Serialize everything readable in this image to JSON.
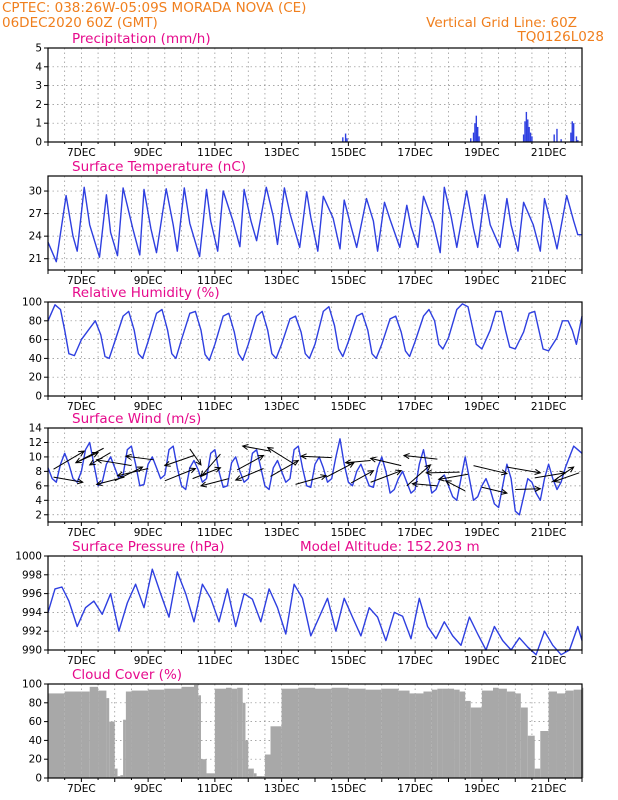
{
  "header": {
    "line1_left": "CPTEC:   038:26W-05:09S   MORADA NOVA (CE)",
    "line2_left": "06DEC2020 60Z (GMT)",
    "line1_right": "Vertical Grid Line: 60Z",
    "line2_right": "TQ0126L028"
  },
  "colors": {
    "header": "#f07f1e",
    "title": "#e60a8c",
    "series": "#2e3fe0",
    "cloud": "#a8a8a8"
  },
  "chart_data": [
    {
      "type": "bar",
      "title": "Precipitation (mm/h)",
      "xtick_labels": [
        "7DEC",
        "9DEC",
        "11DEC",
        "13DEC",
        "15DEC",
        "17DEC",
        "19DEC",
        "21DEC"
      ],
      "ylim": [
        0,
        5
      ],
      "yticks": [
        0,
        1,
        2,
        3,
        4,
        5
      ],
      "grid": true,
      "x_unit": "hours since 06DEC2020 12Z",
      "bars": [
        [
          212,
          0.25
        ],
        [
          214,
          0.45
        ],
        [
          215,
          0.2
        ],
        [
          304,
          0.2
        ],
        [
          306,
          0.5
        ],
        [
          307,
          1.0
        ],
        [
          308,
          1.4
        ],
        [
          309,
          0.8
        ],
        [
          310,
          0.3
        ],
        [
          342,
          0.4
        ],
        [
          343,
          1.1
        ],
        [
          344,
          1.6
        ],
        [
          345,
          1.2
        ],
        [
          346,
          0.8
        ],
        [
          347,
          0.5
        ],
        [
          348,
          0.3
        ],
        [
          364,
          0.4
        ],
        [
          366,
          0.7
        ],
        [
          369,
          0.15
        ],
        [
          376,
          0.5
        ],
        [
          377,
          1.1
        ],
        [
          378,
          1.0
        ],
        [
          380,
          0.3
        ],
        [
          381,
          0.1
        ]
      ]
    },
    {
      "type": "line",
      "title": "Surface Temperature (nC)",
      "xtick_labels": [
        "7DEC",
        "9DEC",
        "11DEC",
        "13DEC",
        "15DEC",
        "17DEC",
        "19DEC",
        "21DEC"
      ],
      "ylim": [
        19.5,
        32
      ],
      "yticks": [
        21,
        24,
        27,
        30
      ],
      "grid": true,
      "x_unit": "hours since 06DEC2020 12Z",
      "x": [
        0,
        6,
        13,
        18,
        21,
        26,
        30,
        37,
        42,
        45,
        50,
        54,
        61,
        66,
        69,
        74,
        78,
        85,
        90,
        93,
        98,
        102,
        109,
        114,
        117,
        122,
        126,
        133,
        138,
        141,
        146,
        150,
        157,
        162,
        165,
        170,
        174,
        181,
        186,
        189,
        194,
        198,
        205,
        210,
        213,
        218,
        222,
        229,
        234,
        237,
        242,
        246,
        253,
        258,
        261,
        266,
        270,
        277,
        282,
        285,
        290,
        294,
        301,
        306,
        309,
        314,
        318,
        325,
        330,
        333,
        338,
        342,
        349,
        354,
        357,
        362,
        366,
        373,
        378,
        381,
        384
      ],
      "values": [
        23.2,
        20.6,
        29.4,
        24,
        22,
        30.5,
        25.5,
        21.2,
        29.5,
        24.5,
        21.4,
        30.4,
        25,
        21.5,
        30.2,
        25,
        21.8,
        30.3,
        25.5,
        22,
        30.4,
        25.7,
        21.3,
        30.2,
        26,
        22,
        30,
        26,
        22.6,
        30.2,
        26,
        23.4,
        30.5,
        26.6,
        22.9,
        30.4,
        27,
        22.5,
        29.9,
        26.5,
        22,
        29.3,
        26.4,
        22.3,
        28.8,
        25.2,
        22.5,
        29,
        26,
        22,
        28.5,
        26.2,
        22.5,
        28.1,
        25.3,
        22.5,
        29.3,
        25.8,
        21.8,
        30.5,
        26.5,
        22.5,
        30,
        25,
        22.5,
        29.5,
        25.5,
        22.5,
        29,
        25.5,
        22,
        28.5,
        25.5,
        22,
        29,
        25.5,
        22.3,
        29.4,
        26,
        24.2,
        24.2
      ]
    },
    {
      "type": "line",
      "title": "Relative Humidity (%)",
      "xtick_labels": [
        "7DEC",
        "9DEC",
        "11DEC",
        "13DEC",
        "15DEC",
        "17DEC",
        "19DEC",
        "21DEC"
      ],
      "ylim": [
        0,
        100
      ],
      "yticks": [
        0,
        20,
        40,
        60,
        80,
        100
      ],
      "grid": true,
      "x_unit": "hours since 06DEC2020 12Z",
      "x": [
        0,
        5,
        9,
        12,
        15,
        19,
        24,
        30,
        34,
        38,
        41,
        44,
        48,
        54,
        58,
        62,
        65,
        68,
        72,
        78,
        82,
        86,
        89,
        92,
        96,
        102,
        106,
        110,
        113,
        116,
        120,
        126,
        130,
        134,
        137,
        140,
        144,
        150,
        154,
        158,
        161,
        164,
        168,
        174,
        178,
        182,
        185,
        188,
        192,
        198,
        202,
        206,
        209,
        212,
        216,
        222,
        226,
        230,
        233,
        236,
        240,
        246,
        250,
        254,
        257,
        260,
        264,
        270,
        274,
        278,
        281,
        284,
        288,
        294,
        298,
        302,
        305,
        308,
        312,
        318,
        322,
        326,
        329,
        332,
        336,
        342,
        346,
        350,
        353,
        356,
        360,
        366,
        370,
        374,
        377,
        380,
        384
      ],
      "values": [
        80,
        97,
        92,
        70,
        45,
        43,
        60,
        72,
        80,
        65,
        42,
        40,
        58,
        85,
        90,
        70,
        45,
        40,
        58,
        88,
        92,
        70,
        45,
        40,
        60,
        88,
        90,
        70,
        44,
        38,
        55,
        85,
        88,
        68,
        45,
        38,
        55,
        85,
        90,
        70,
        45,
        40,
        55,
        82,
        85,
        68,
        45,
        40,
        55,
        90,
        95,
        75,
        50,
        42,
        58,
        85,
        88,
        70,
        45,
        40,
        55,
        82,
        85,
        68,
        48,
        42,
        58,
        85,
        92,
        80,
        55,
        50,
        62,
        92,
        98,
        95,
        75,
        55,
        50,
        70,
        90,
        90,
        70,
        52,
        50,
        68,
        88,
        90,
        70,
        50,
        48,
        62,
        80,
        80,
        70,
        55,
        85
      ]
    },
    {
      "type": "line",
      "title": "Surface Wind (m/s)",
      "xtick_labels": [
        "7DEC",
        "9DEC",
        "11DEC",
        "13DEC",
        "15DEC",
        "17DEC",
        "19DEC",
        "21DEC"
      ],
      "ylim": [
        1,
        14
      ],
      "yticks": [
        2,
        4,
        6,
        8,
        10,
        12,
        14
      ],
      "grid": true,
      "x_unit": "hours since 06DEC2020 12Z",
      "x": [
        0,
        3,
        6,
        9,
        12,
        15,
        18,
        21,
        24,
        27,
        30,
        33,
        36,
        39,
        42,
        45,
        48,
        51,
        54,
        57,
        60,
        63,
        66,
        69,
        72,
        75,
        78,
        81,
        84,
        87,
        90,
        93,
        96,
        99,
        102,
        105,
        108,
        111,
        114,
        117,
        120,
        123,
        126,
        129,
        132,
        135,
        138,
        141,
        144,
        147,
        150,
        153,
        156,
        159,
        162,
        165,
        168,
        171,
        174,
        177,
        180,
        183,
        186,
        189,
        192,
        195,
        198,
        201,
        204,
        207,
        210,
        213,
        216,
        219,
        222,
        225,
        228,
        231,
        234,
        237,
        240,
        243,
        246,
        249,
        252,
        255,
        258,
        261,
        264,
        267,
        270,
        273,
        276,
        279,
        282,
        285,
        288,
        291,
        294,
        297,
        300,
        303,
        306,
        309,
        312,
        315,
        318,
        321,
        324,
        327,
        330,
        333,
        336,
        339,
        342,
        345,
        348,
        351,
        354,
        357,
        360,
        363,
        366,
        369,
        372,
        375,
        378,
        381,
        384
      ],
      "values": [
        8.5,
        7,
        6.5,
        9,
        10.5,
        9,
        7,
        6.5,
        8,
        11,
        12,
        9,
        6,
        6.5,
        9,
        10,
        8.5,
        7,
        7.5,
        11,
        11.5,
        9,
        6,
        6.2,
        9,
        10,
        8.5,
        7,
        7.5,
        11,
        11.5,
        8.5,
        6,
        5.5,
        8.5,
        9.5,
        8.2,
        6.5,
        7,
        10.5,
        11,
        8,
        5.8,
        6,
        9.2,
        10,
        8,
        6.5,
        7,
        10.5,
        11,
        8.5,
        6,
        5.5,
        8.5,
        9.5,
        8,
        6.5,
        7,
        11,
        11.5,
        8.5,
        6,
        5.8,
        9,
        10,
        8.5,
        6.5,
        7,
        10,
        12.5,
        9,
        6.5,
        6,
        8,
        9,
        7.5,
        6,
        5.8,
        8.5,
        10,
        8,
        5,
        5.5,
        7,
        8,
        6.5,
        5,
        5.5,
        9,
        11,
        8,
        5,
        5.5,
        7,
        7.5,
        6,
        4.5,
        4,
        7,
        10,
        7,
        4,
        4.5,
        6,
        7,
        5.5,
        3.5,
        3,
        6,
        9,
        7,
        2.5,
        2,
        4.5,
        7,
        6.5,
        5,
        4,
        7,
        9,
        7,
        5.5,
        6.5,
        8.5,
        10,
        11.5,
        11,
        10.5
      ],
      "vectors": [
        [
          4,
          8.3,
          26,
          10.8
        ],
        [
          4,
          7.2,
          25,
          6.5
        ],
        [
          20,
          9.2,
          36,
          10.6
        ],
        [
          40,
          11.2,
          20,
          9.2
        ],
        [
          45,
          10.6,
          30,
          8.9
        ],
        [
          60,
          8.8,
          35,
          9.6
        ],
        [
          55,
          7.2,
          35,
          6.2
        ],
        [
          48,
          6.7,
          68,
          8.6
        ],
        [
          72,
          8.4,
          50,
          7.4
        ],
        [
          76,
          9.6,
          56,
          10.1
        ],
        [
          84,
          6.7,
          106,
          8.4
        ],
        [
          105,
          10.2,
          84,
          8.8
        ],
        [
          104,
          7.0,
          124,
          8.5
        ],
        [
          102,
          11.1,
          110,
          8.9
        ],
        [
          124,
          10.4,
          110,
          7.3
        ],
        [
          130,
          7.0,
          110,
          6.0
        ],
        [
          136,
          8.2,
          155,
          10.2
        ],
        [
          155,
          8.4,
          135,
          6.8
        ],
        [
          160,
          10.8,
          140,
          11.5
        ],
        [
          160,
          7.3,
          180,
          9.5
        ],
        [
          178,
          8.9,
          158,
          11.3
        ],
        [
          178,
          6.2,
          200,
          7.4
        ],
        [
          204,
          9.9,
          182,
          10.1
        ],
        [
          200,
          7.2,
          220,
          9.2
        ],
        [
          218,
          6.4,
          234,
          8.1
        ],
        [
          232,
          9.5,
          214,
          9.2
        ],
        [
          232,
          6.5,
          254,
          8.1
        ],
        [
          254,
          8.8,
          232,
          9.8
        ],
        [
          258,
          6.0,
          275,
          8.9
        ],
        [
          280,
          9.7,
          256,
          10.2
        ],
        [
          280,
          6.0,
          262,
          6.3
        ],
        [
          296,
          7.9,
          272,
          7.8
        ],
        [
          300,
          5.3,
          286,
          6.7
        ],
        [
          302,
          7.6,
          281,
          6.9
        ],
        [
          306,
          8.8,
          330,
          7.7
        ],
        [
          312,
          5.8,
          330,
          5.0
        ],
        [
          330,
          8.6,
          354,
          7.8
        ],
        [
          336,
          5.5,
          354,
          5.6
        ],
        [
          350,
          7.1,
          372,
          7.8
        ],
        [
          362,
          6.5,
          378,
          8.6
        ],
        [
          382,
          7.8,
          364,
          6.6
        ]
      ]
    },
    {
      "type": "line",
      "title": "Surface Pressure (hPa)",
      "annotation": "Model Altitude: 152.203 m",
      "xtick_labels": [
        "7DEC",
        "9DEC",
        "11DEC",
        "13DEC",
        "15DEC",
        "17DEC",
        "19DEC",
        "21DEC"
      ],
      "ylim": [
        990,
        1000
      ],
      "yticks": [
        990,
        992,
        994,
        996,
        998,
        1000
      ],
      "grid": true,
      "x_unit": "hours since 06DEC2020 12Z",
      "x": [
        0,
        5,
        10,
        15,
        21,
        27,
        33,
        39,
        45,
        51,
        57,
        63,
        69,
        75,
        81,
        87,
        93,
        99,
        105,
        111,
        117,
        123,
        129,
        135,
        141,
        147,
        153,
        159,
        165,
        171,
        177,
        183,
        189,
        195,
        201,
        207,
        213,
        219,
        225,
        231,
        237,
        243,
        249,
        255,
        261,
        267,
        273,
        279,
        285,
        291,
        297,
        303,
        309,
        315,
        321,
        327,
        333,
        339,
        345,
        351,
        357,
        363,
        369,
        375,
        381,
        384
      ],
      "values": [
        994,
        996.5,
        996.7,
        995.2,
        992.5,
        994.5,
        995.2,
        993.8,
        996,
        992,
        995,
        997,
        994.5,
        998.6,
        996,
        993.5,
        998.3,
        996,
        993,
        997,
        995.5,
        993,
        996.5,
        992.5,
        996,
        995.4,
        993,
        996.5,
        994.5,
        991.7,
        997,
        995.5,
        991.5,
        993.5,
        995.5,
        992,
        995.5,
        993.5,
        991.5,
        994.5,
        993.5,
        991,
        994,
        993.6,
        991.2,
        995.5,
        992.5,
        991.2,
        993,
        991.5,
        990.5,
        993.5,
        991.7,
        990,
        992.5,
        991,
        990,
        991.3,
        990.3,
        989.5,
        992,
        990.5,
        989.5,
        990,
        992.5,
        991
      ]
    },
    {
      "type": "bar",
      "title": "Cloud Cover (%)",
      "xtick_labels": [
        "7DEC",
        "9DEC",
        "11DEC",
        "13DEC",
        "15DEC",
        "17DEC",
        "19DEC",
        "21DEC"
      ],
      "ylim": [
        0,
        100
      ],
      "yticks": [
        0,
        20,
        40,
        60,
        80,
        100
      ],
      "grid": true,
      "x_unit": "hours since 06DEC2020 12Z",
      "bar_width": 1,
      "x": [
        0,
        12,
        24,
        30,
        36,
        42,
        44,
        48,
        50,
        52,
        54,
        56,
        60,
        72,
        84,
        96,
        105,
        108,
        110,
        114,
        120,
        128,
        132,
        136,
        140,
        142,
        144,
        148,
        150,
        154,
        156,
        160,
        168,
        180,
        192,
        204,
        216,
        228,
        240,
        252,
        260,
        264,
        270,
        276,
        280,
        284,
        288,
        292,
        296,
        300,
        304,
        312,
        320,
        324,
        330,
        336,
        340,
        345,
        350,
        354,
        360,
        366,
        372,
        378,
        384
      ],
      "values": [
        90,
        92,
        92,
        97,
        93,
        85,
        60,
        10,
        2,
        3,
        62,
        92,
        93,
        94,
        95,
        97,
        99,
        88,
        20,
        5,
        95,
        96,
        95,
        96,
        80,
        40,
        10,
        5,
        2,
        2,
        25,
        55,
        95,
        96,
        95,
        96,
        95,
        94,
        95,
        93,
        90,
        90,
        92,
        94,
        95,
        95,
        95,
        94,
        92,
        82,
        75,
        93,
        96,
        95,
        92,
        90,
        75,
        45,
        10,
        50,
        92,
        90,
        93,
        94,
        96
      ]
    }
  ]
}
